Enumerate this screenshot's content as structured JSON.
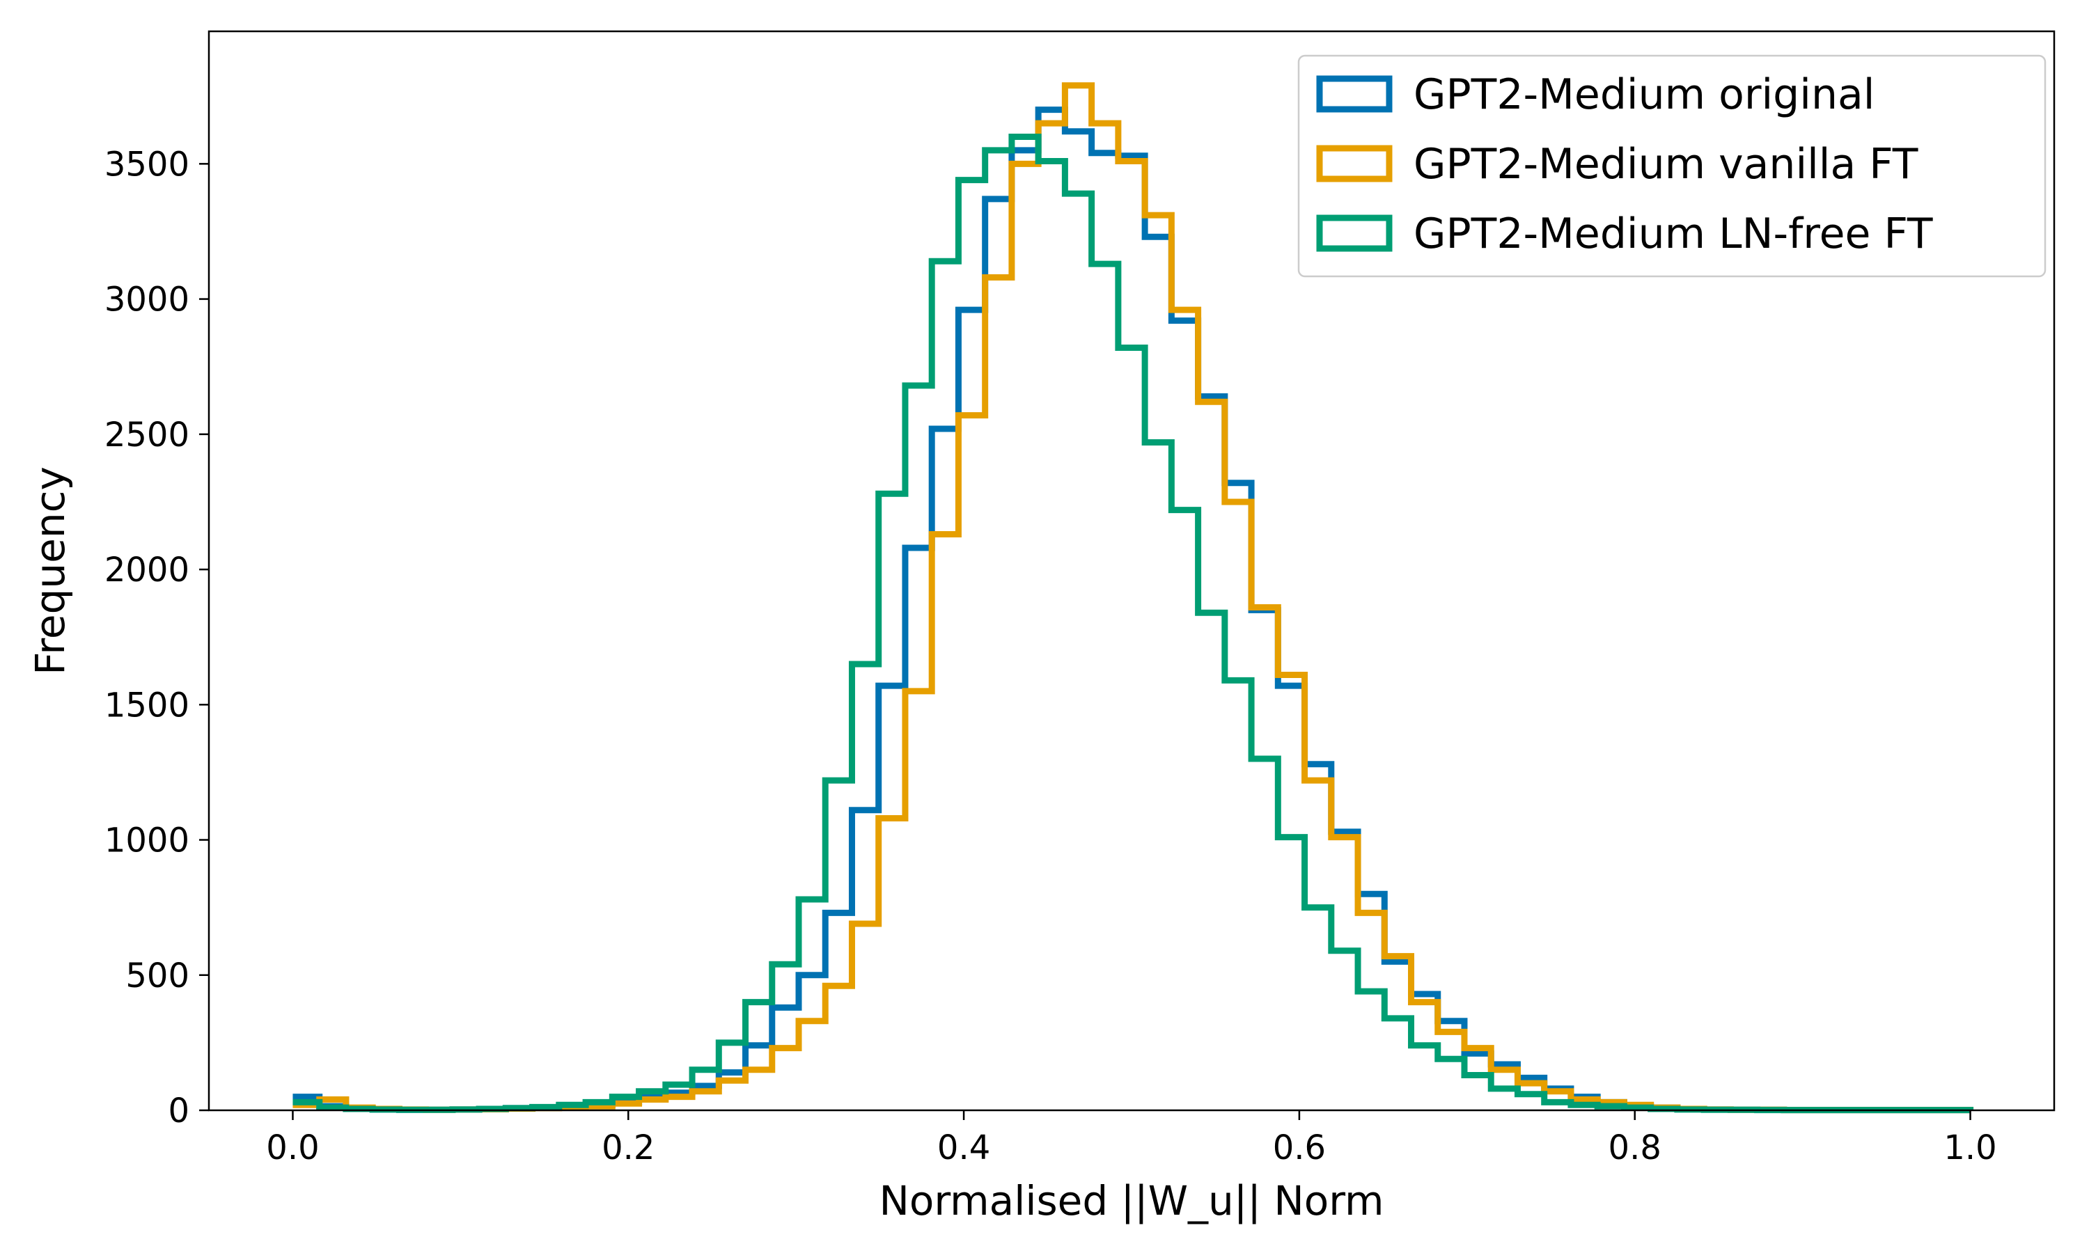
{
  "chart_data": {
    "type": "histogram-step",
    "xlabel": "Normalised ||W_u|| Norm",
    "ylabel": "Frequency",
    "xlim": [
      -0.05,
      1.05
    ],
    "ylim": [
      0,
      3990
    ],
    "x_ticks": [
      "0.0",
      "0.2",
      "0.4",
      "0.6",
      "0.8",
      "1.0"
    ],
    "y_ticks": [
      "0",
      "500",
      "1000",
      "1500",
      "2000",
      "2500",
      "3000",
      "3500"
    ],
    "bin_edges_start": 0.0,
    "bin_edges_end": 1.0,
    "bin_count": 63,
    "grid": false,
    "legend_position": "upper right",
    "series": [
      {
        "name": "GPT2-Medium original",
        "color": "#0072B2",
        "values": [
          50,
          15,
          5,
          3,
          2,
          2,
          3,
          5,
          8,
          10,
          15,
          20,
          30,
          50,
          65,
          90,
          140,
          240,
          380,
          500,
          730,
          1110,
          1570,
          2080,
          2520,
          2960,
          3370,
          3550,
          3700,
          3620,
          3540,
          3530,
          3230,
          2920,
          2640,
          2320,
          1850,
          1570,
          1280,
          1030,
          800,
          550,
          430,
          330,
          210,
          170,
          120,
          80,
          50,
          30,
          15,
          10,
          5,
          3,
          2,
          2,
          1,
          1,
          1,
          1,
          1,
          1,
          1
        ]
      },
      {
        "name": "GPT2-Medium vanilla FT",
        "color": "#E69F00",
        "values": [
          20,
          40,
          10,
          5,
          3,
          2,
          3,
          4,
          6,
          8,
          10,
          15,
          25,
          40,
          50,
          70,
          110,
          150,
          230,
          330,
          460,
          690,
          1080,
          1550,
          2130,
          2570,
          3080,
          3500,
          3650,
          3790,
          3650,
          3510,
          3310,
          2960,
          2620,
          2250,
          1860,
          1610,
          1220,
          1010,
          730,
          570,
          400,
          290,
          230,
          150,
          100,
          70,
          40,
          30,
          20,
          10,
          5,
          3,
          2,
          2,
          1,
          1,
          1,
          1,
          1,
          1,
          1
        ]
      },
      {
        "name": "GPT2-Medium LN-free FT",
        "color": "#009E73",
        "values": [
          30,
          10,
          5,
          3,
          2,
          2,
          3,
          5,
          8,
          12,
          20,
          30,
          50,
          70,
          95,
          150,
          250,
          400,
          540,
          780,
          1220,
          1650,
          2280,
          2680,
          3140,
          3440,
          3550,
          3600,
          3510,
          3390,
          3130,
          2820,
          2470,
          2220,
          1840,
          1590,
          1300,
          1010,
          750,
          590,
          440,
          340,
          240,
          190,
          130,
          80,
          60,
          30,
          20,
          15,
          10,
          5,
          3,
          2,
          2,
          1,
          1,
          1,
          1,
          1,
          1,
          1,
          1
        ]
      }
    ]
  }
}
